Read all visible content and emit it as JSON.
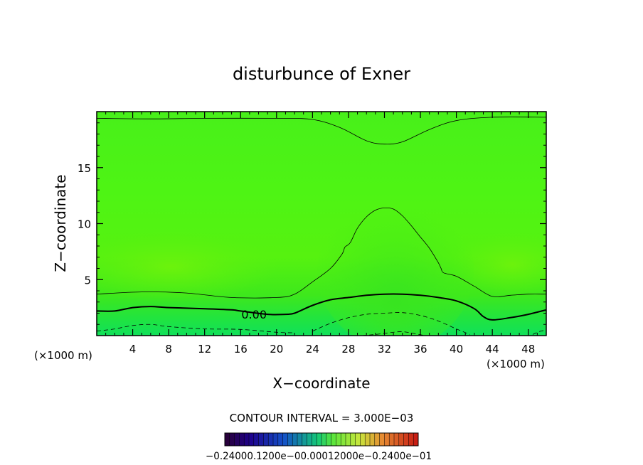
{
  "chart_data": {
    "type": "contour",
    "title": "disturbunce of Exner",
    "xlabel": "X−coordinate",
    "ylabel": "Z−coordinate",
    "x_unit_left": "(×1000 m)",
    "x_unit_right": "(×1000 m)",
    "xlim": [
      0,
      50
    ],
    "ylim": [
      0,
      20
    ],
    "x_ticks": [
      4,
      8,
      12,
      16,
      20,
      24,
      28,
      32,
      36,
      40,
      44,
      48
    ],
    "y_ticks": [
      5,
      10,
      15
    ],
    "contour_interval_text": "CONTOUR INTERVAL = 3.000E−03",
    "contour_interval": 0.003,
    "contour_labels": [
      {
        "text": "0.00",
        "x": 17.5,
        "y": 1.9
      }
    ],
    "contours": [
      {
        "level": 0.003,
        "style": "thin",
        "points": [
          [
            0,
            19.4
          ],
          [
            6,
            19.35
          ],
          [
            12,
            19.4
          ],
          [
            20,
            19.4
          ],
          [
            24,
            19.3
          ],
          [
            27,
            18.6
          ],
          [
            30,
            17.4
          ],
          [
            32,
            17.1
          ],
          [
            34,
            17.3
          ],
          [
            37,
            18.4
          ],
          [
            40,
            19.2
          ],
          [
            44,
            19.5
          ],
          [
            50,
            19.5
          ]
        ]
      },
      {
        "level": 0.003,
        "style": "thin",
        "points": [
          [
            0,
            3.7
          ],
          [
            5,
            3.9
          ],
          [
            10,
            3.8
          ],
          [
            15,
            3.4
          ],
          [
            20,
            3.4
          ],
          [
            22,
            3.7
          ],
          [
            24,
            4.8
          ],
          [
            26,
            6.0
          ],
          [
            27.3,
            7.3
          ],
          [
            27.6,
            7.9
          ],
          [
            28.2,
            8.3
          ],
          [
            29,
            9.6
          ],
          [
            30,
            10.6
          ],
          [
            31,
            11.2
          ],
          [
            32,
            11.4
          ],
          [
            33,
            11.3
          ],
          [
            34,
            10.7
          ],
          [
            35,
            9.8
          ],
          [
            36,
            8.8
          ],
          [
            37,
            7.8
          ],
          [
            38,
            6.5
          ],
          [
            38.3,
            6.0
          ],
          [
            38.6,
            5.6
          ],
          [
            40,
            5.3
          ],
          [
            42,
            4.4
          ],
          [
            44,
            3.5
          ],
          [
            46,
            3.6
          ],
          [
            48,
            3.7
          ],
          [
            50,
            3.7
          ]
        ]
      },
      {
        "level": 0.0,
        "style": "thick",
        "points": [
          [
            0,
            2.2
          ],
          [
            2,
            2.2
          ],
          [
            4,
            2.5
          ],
          [
            6,
            2.6
          ],
          [
            8,
            2.5
          ],
          [
            12,
            2.4
          ],
          [
            15,
            2.3
          ],
          [
            16,
            2.2
          ],
          [
            19,
            1.9
          ],
          [
            21,
            1.9
          ],
          [
            22,
            2.0
          ],
          [
            24,
            2.7
          ],
          [
            26,
            3.2
          ],
          [
            28,
            3.4
          ],
          [
            30,
            3.6
          ],
          [
            32,
            3.7
          ],
          [
            34,
            3.7
          ],
          [
            36,
            3.6
          ],
          [
            38,
            3.4
          ],
          [
            40,
            3.1
          ],
          [
            42,
            2.4
          ],
          [
            43,
            1.7
          ],
          [
            44,
            1.4
          ],
          [
            46,
            1.6
          ],
          [
            48,
            1.9
          ],
          [
            50,
            2.3
          ]
        ]
      },
      {
        "level": -0.003,
        "style": "dashed",
        "points": [
          [
            0,
            0.4
          ],
          [
            2,
            0.6
          ],
          [
            4,
            0.9
          ],
          [
            6,
            1.0
          ],
          [
            8,
            0.8
          ],
          [
            12,
            0.6
          ],
          [
            16,
            0.55
          ],
          [
            20,
            0.3
          ],
          [
            22,
            0.25
          ]
        ]
      },
      {
        "level": -0.003,
        "style": "dashed",
        "points": [
          [
            24,
            0.4
          ],
          [
            26,
            1.1
          ],
          [
            28,
            1.6
          ],
          [
            30,
            1.9
          ],
          [
            32,
            2.0
          ],
          [
            34,
            2.05
          ],
          [
            36,
            1.8
          ],
          [
            38,
            1.3
          ],
          [
            40,
            0.6
          ],
          [
            41.5,
            0.1
          ]
        ]
      },
      {
        "level": -0.006,
        "style": "dashed",
        "points": [
          [
            29.5,
            0.0
          ],
          [
            31,
            0.1
          ],
          [
            32.5,
            0.25
          ],
          [
            34,
            0.35
          ],
          [
            35.5,
            0.15
          ],
          [
            36.5,
            0.0
          ]
        ]
      },
      {
        "level": -0.003,
        "style": "dashed",
        "points": [
          [
            48.5,
            0.1
          ],
          [
            49.2,
            0.35
          ],
          [
            50,
            0.5
          ]
        ]
      }
    ],
    "colorbar": {
      "min_label": "−0.24000e−01",
      "max_label": "0.24000e−01",
      "tick_labels_text": "−0.24000e−01",
      "overlapped_text": "−0.24000.1200e−00.00012000e−0.2400e−01",
      "n_segments": 40
    }
  }
}
